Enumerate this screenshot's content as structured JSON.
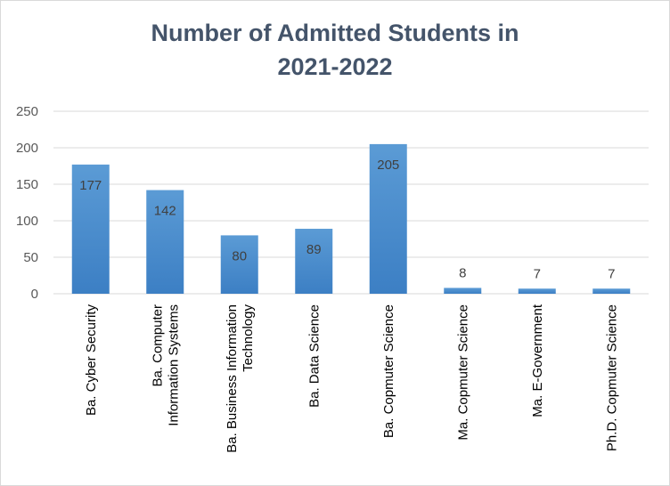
{
  "chart_data": {
    "type": "bar",
    "title_lines": [
      "Number of Admitted Students in",
      "2021-2022"
    ],
    "categories": [
      [
        "Ba. Cyber Security"
      ],
      [
        "Ba. Computer",
        "Information Systems"
      ],
      [
        "Ba. Business Information",
        "Technology"
      ],
      [
        "Ba. Data Science"
      ],
      [
        "Ba. Copmuter Science"
      ],
      [
        "Ma. Copmuter Science"
      ],
      [
        "Ma. E-Government"
      ],
      [
        "Ph.D. Copmuter Science"
      ]
    ],
    "values": [
      177,
      142,
      80,
      89,
      205,
      8,
      7,
      7
    ],
    "data_labels": [
      "177",
      "142",
      "80",
      "89",
      "205",
      "8",
      "7",
      "7"
    ],
    "y_ticks": [
      "0",
      "50",
      "100",
      "150",
      "200",
      "250"
    ],
    "ylim": [
      0,
      250
    ],
    "grid": true,
    "bar_color": "#5b9bd5",
    "bar_color_dark": "#3c7fc4",
    "legend": "none"
  }
}
